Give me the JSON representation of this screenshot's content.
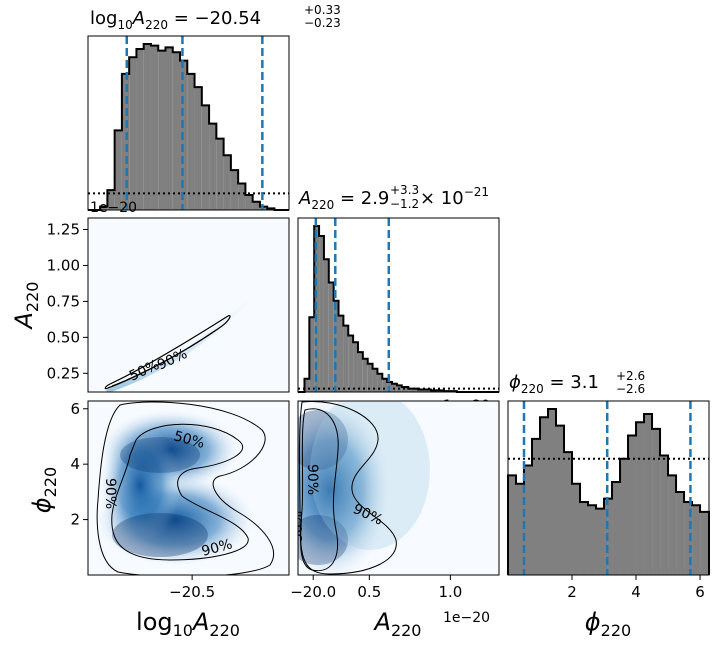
{
  "chart_data": {
    "type": "corner",
    "parameters": [
      "log10A220",
      "A220",
      "phi220"
    ],
    "titles": {
      "log10A220": {
        "lhs": "log",
        "sub1": "10",
        "A": "A",
        "sub2": "220",
        "eq": " = −20.54",
        "sup": "+0.33",
        "lo": "−0.23"
      },
      "A220": {
        "A": "A",
        "sub2": "220",
        "eq": " = 2.9",
        "sup": "+3.3",
        "lo": "−1.2",
        "times": "× 10",
        "exp": "−21"
      },
      "phi220": {
        "phi": "ϕ",
        "sub2": "220",
        "eq": " = 3.1",
        "sup": "+2.6",
        "lo": "−2.6"
      }
    },
    "axis_labels": {
      "log10A220": {
        "base": "log",
        "sub1": "10",
        "A": "A",
        "sub2": "220"
      },
      "A220": {
        "A": "A",
        "sub2": "220"
      },
      "phi220": {
        "phi": "ϕ",
        "sub2": "220"
      }
    },
    "offset_labels": {
      "A220_x": "1e−20",
      "A220_top": "1e−20",
      "A220_side": "1e−20"
    },
    "ticks": {
      "log10A220": {
        "values": [
          -20.5,
          -20.0
        ],
        "labels": [
          "−20.5",
          "−20.0"
        ]
      },
      "A220": {
        "values": [
          0.5,
          1.0
        ],
        "labels": [
          "0.5",
          "1.0"
        ]
      },
      "A220_y": {
        "values": [
          0.25,
          0.5,
          0.75,
          1.0,
          1.25
        ],
        "labels": [
          "0.25",
          "0.50",
          "0.75",
          "1.00",
          "1.25"
        ]
      },
      "phi220": {
        "values": [
          2,
          4,
          6
        ],
        "labels": [
          "2",
          "4",
          "6"
        ]
      }
    },
    "ranges": {
      "log10A220": [
        -20.93,
        -20.1
      ],
      "A220": [
        0.06,
        1.3
      ],
      "A220_y": [
        0.12,
        1.33
      ],
      "phi220": [
        0.0,
        6.28
      ]
    },
    "quantiles": {
      "log10A220": [
        -20.77,
        -20.54,
        -20.21
      ],
      "A220": [
        0.17,
        0.29,
        0.62
      ],
      "phi220": [
        0.5,
        3.1,
        5.7
      ]
    },
    "histograms": {
      "log10A220": {
        "bins": [
          -20.93,
          -20.88,
          -20.85,
          -20.82,
          -20.79,
          -20.76,
          -20.73,
          -20.7,
          -20.67,
          -20.64,
          -20.61,
          -20.58,
          -20.55,
          -20.52,
          -20.49,
          -20.46,
          -20.43,
          -20.4,
          -20.37,
          -20.34,
          -20.31,
          -20.28,
          -20.25,
          -20.22,
          -20.19,
          -20.16,
          -20.13,
          -20.1
        ],
        "counts": [
          0,
          0.02,
          0.12,
          0.48,
          0.82,
          0.92,
          0.97,
          1.0,
          0.99,
          0.96,
          0.98,
          0.95,
          0.9,
          0.82,
          0.74,
          0.63,
          0.52,
          0.43,
          0.33,
          0.24,
          0.16,
          0.09,
          0.05,
          0.02,
          0.01,
          0.0,
          0.0
        ],
        "prior": 0.1
      },
      "A220": {
        "bins": [
          0.06,
          0.1,
          0.13,
          0.16,
          0.19,
          0.22,
          0.25,
          0.28,
          0.31,
          0.34,
          0.37,
          0.4,
          0.43,
          0.46,
          0.49,
          0.52,
          0.55,
          0.58,
          0.61,
          0.64,
          0.67,
          0.7,
          0.74,
          0.8,
          0.88,
          0.96,
          1.04,
          1.3
        ],
        "counts": [
          0,
          0.08,
          0.45,
          1.0,
          0.94,
          0.8,
          0.66,
          0.55,
          0.46,
          0.4,
          0.34,
          0.3,
          0.24,
          0.2,
          0.17,
          0.14,
          0.11,
          0.08,
          0.06,
          0.05,
          0.04,
          0.03,
          0.02,
          0.015,
          0.01,
          0.005,
          0.0
        ],
        "prior": 0.02
      },
      "phi220": {
        "bins": [
          0.0,
          0.25,
          0.5,
          0.75,
          1.0,
          1.25,
          1.5,
          1.75,
          2.0,
          2.25,
          2.5,
          2.75,
          3.0,
          3.25,
          3.5,
          3.75,
          4.0,
          4.25,
          4.5,
          4.75,
          5.0,
          5.25,
          5.5,
          5.75,
          6.0,
          6.28
        ],
        "counts": [
          0.6,
          0.55,
          0.66,
          0.82,
          0.95,
          1.0,
          0.9,
          0.74,
          0.55,
          0.44,
          0.42,
          0.4,
          0.46,
          0.56,
          0.7,
          0.84,
          0.92,
          0.97,
          0.88,
          0.72,
          0.6,
          0.5,
          0.44,
          0.42,
          0.38
        ],
        "prior": 0.7
      }
    },
    "contour_levels": [
      "50%",
      "90%"
    ],
    "colors": {
      "hist_fill": "#808080",
      "hist_edge": "#000000",
      "quantile": "#1f77b4",
      "density": "#08519c"
    }
  }
}
